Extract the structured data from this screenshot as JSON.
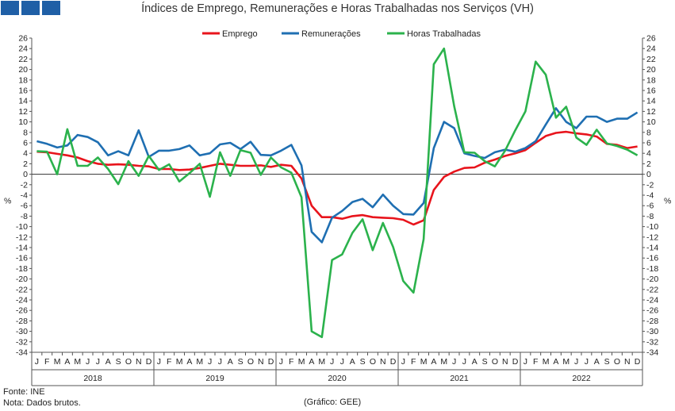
{
  "logo": {
    "icon": "ine-logo-icon"
  },
  "chart_data": {
    "type": "line",
    "title": "Índices de Emprego, Remunerações e Horas Trabalhadas nos Serviços (VH)",
    "ylabel": "%",
    "ylim": [
      -34,
      26
    ],
    "ytick_step": 2,
    "grid": false,
    "legend_position": "top",
    "month_labels": [
      "J",
      "F",
      "M",
      "A",
      "M",
      "J",
      "J",
      "A",
      "S",
      "O",
      "N",
      "D"
    ],
    "years": [
      "2018",
      "2019",
      "2020",
      "2021",
      "2022"
    ],
    "series": [
      {
        "name": "Emprego",
        "color": "#e8141c",
        "values": [
          4.3,
          4.2,
          3.9,
          3.6,
          3.2,
          2.5,
          2.0,
          1.8,
          1.9,
          1.8,
          1.6,
          1.5,
          1.0,
          1.0,
          0.8,
          0.9,
          1.2,
          1.6,
          2.0,
          1.8,
          1.6,
          1.6,
          1.7,
          1.4,
          1.8,
          1.6,
          -0.8,
          -6.0,
          -8.2,
          -8.2,
          -8.5,
          -8.0,
          -7.8,
          -8.2,
          -8.3,
          -8.4,
          -8.7,
          -9.6,
          -8.8,
          -3.0,
          -0.5,
          0.5,
          1.2,
          1.3,
          2.2,
          2.8,
          3.5,
          4.0,
          4.6,
          6.0,
          7.3,
          7.9,
          8.1,
          7.8,
          7.6,
          7.2,
          5.8,
          5.6,
          5.0,
          5.3
        ]
      },
      {
        "name": "Remunerações",
        "color": "#1f6fb2",
        "values": [
          6.3,
          5.8,
          5.1,
          5.5,
          7.5,
          7.1,
          6.1,
          3.6,
          4.4,
          3.6,
          8.4,
          3.3,
          4.5,
          4.5,
          4.8,
          5.5,
          3.6,
          4.0,
          5.7,
          6.0,
          4.8,
          6.2,
          3.7,
          3.6,
          4.5,
          5.6,
          1.7,
          -11.0,
          -13.0,
          -8.3,
          -7.0,
          -5.3,
          -4.7,
          -6.3,
          -3.9,
          -6.0,
          -7.6,
          -7.7,
          -5.5,
          5.0,
          10.0,
          8.8,
          4.0,
          3.5,
          3.1,
          4.2,
          4.7,
          4.3,
          5.0,
          6.3,
          9.5,
          12.6,
          10.0,
          8.8,
          11.0,
          11.0,
          10.0,
          10.6,
          10.6,
          11.8
        ]
      },
      {
        "name": "Horas Trabalhadas",
        "color": "#2bb24c",
        "values": [
          4.4,
          4.3,
          0.0,
          8.6,
          1.6,
          1.6,
          3.2,
          1.0,
          -1.9,
          2.5,
          -0.3,
          3.5,
          0.8,
          1.9,
          -1.4,
          0.2,
          2.0,
          -4.3,
          4.2,
          -0.3,
          4.6,
          4.1,
          -0.1,
          3.2,
          1.3,
          0.3,
          -4.4,
          -30.0,
          -31.1,
          -16.4,
          -15.3,
          -11.2,
          -8.6,
          -14.5,
          -9.3,
          -13.9,
          -20.4,
          -22.6,
          -12.4,
          21.0,
          24.0,
          13.0,
          4.2,
          4.1,
          2.5,
          1.5,
          4.5,
          8.4,
          12.0,
          21.5,
          19.0,
          10.8,
          12.9,
          7.0,
          5.6,
          8.5,
          5.9,
          5.4,
          4.7,
          3.6
        ]
      }
    ]
  },
  "footer": {
    "source": "Fonte: INE",
    "note": "Nota: Dados brutos.",
    "credit": "(Gráfico: GEE)"
  }
}
